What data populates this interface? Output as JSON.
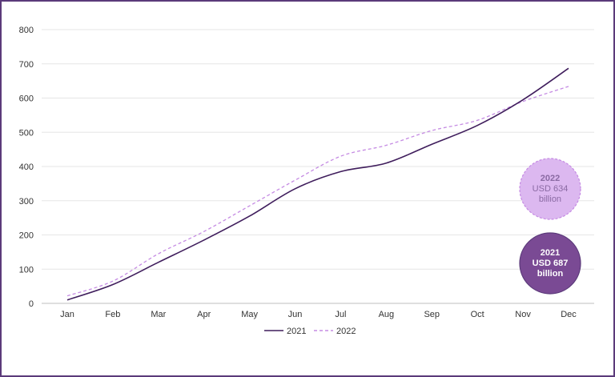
{
  "chart_data": {
    "type": "line",
    "categories": [
      "Jan",
      "Feb",
      "Mar",
      "Apr",
      "May",
      "Jun",
      "Jul",
      "Aug",
      "Sep",
      "Oct",
      "Nov",
      "Dec"
    ],
    "series": [
      {
        "name": "2021",
        "values": [
          10,
          55,
          120,
          185,
          255,
          335,
          385,
          410,
          465,
          520,
          595,
          687
        ],
        "color": "#3f1d5c",
        "style": "solid"
      },
      {
        "name": "2022",
        "values": [
          22,
          65,
          145,
          210,
          285,
          360,
          430,
          462,
          505,
          535,
          590,
          634
        ],
        "color": "#c58be3",
        "style": "dashed"
      }
    ],
    "y_ticks": [
      "0",
      "100",
      "200",
      "300",
      "400",
      "500",
      "600",
      "700",
      "800"
    ],
    "ylim": [
      0,
      800
    ],
    "grid": true,
    "legend_position": "bottom-center",
    "annotations": [
      {
        "year": "2022",
        "line1": "USD 634",
        "line2": "billion",
        "fill": "#dcb8f0",
        "stroke": "#c58be3",
        "text_color": "#8a6aa3"
      },
      {
        "year": "2021",
        "line1": "USD 687",
        "line2": "billion",
        "fill": "#7a4a94",
        "stroke": "#5b3a7a",
        "text_color": "#ffffff"
      }
    ]
  }
}
